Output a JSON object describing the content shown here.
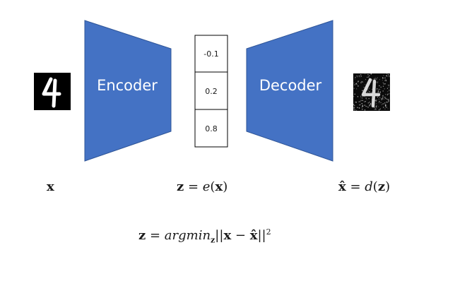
{
  "colors": {
    "block": "#4472c4",
    "block_stroke": "#2f5597",
    "text": "#1a1a1a"
  },
  "encoder": {
    "label": "Encoder"
  },
  "decoder": {
    "label": "Decoder"
  },
  "latent": {
    "values": [
      "-0.1",
      "0.2",
      "0.8"
    ]
  },
  "input_image": {
    "icon": "mnist-digit-4-clean"
  },
  "output_image": {
    "icon": "mnist-digit-4-noisy"
  },
  "formulas": {
    "x": {
      "var": "x"
    },
    "z": {
      "lhs": "z",
      "eq": " = ",
      "fn": "e",
      "open": "(",
      "arg": "x",
      "close": ")"
    },
    "xhat": {
      "lhs": "x̂",
      "eq": " = ",
      "fn": "d",
      "open": "(",
      "arg": "z",
      "close": ")"
    },
    "objective": {
      "lhs": "z",
      "eq": " = ",
      "fn": "argmin",
      "sub": "z",
      "norm_open": "||",
      "a": "x",
      "minus": " − ",
      "b": "x̂",
      "norm_close": "||",
      "sup": "2"
    }
  }
}
